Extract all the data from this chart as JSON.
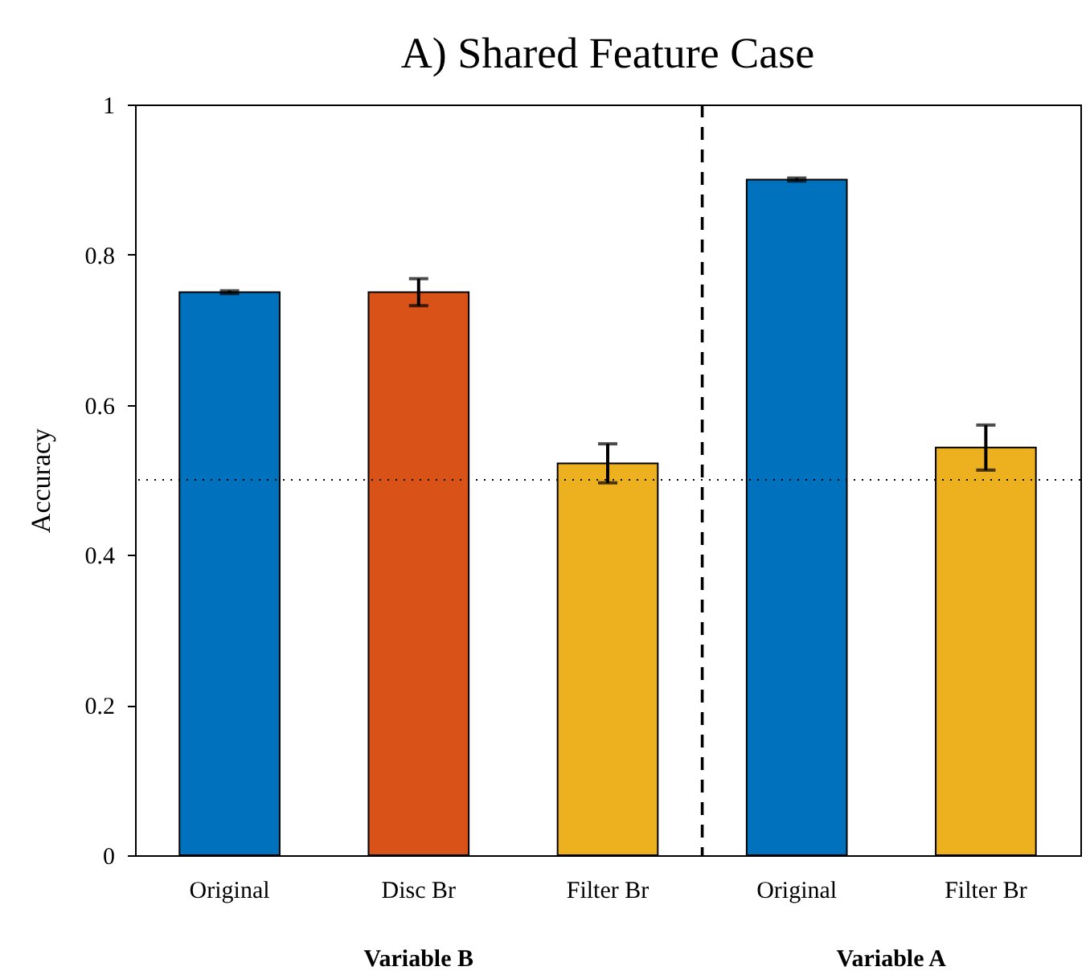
{
  "chart_data": {
    "type": "bar",
    "title": "A) Shared Feature Case",
    "ylabel": "Accuracy",
    "categories": [
      "Original",
      "Disc Br",
      "Filter Br",
      "Original",
      "Filter Br"
    ],
    "values": [
      0.75,
      0.75,
      0.522,
      0.9,
      0.543
    ],
    "colors": [
      "#0072bd",
      "#d95319",
      "#edb120",
      "#0072bd",
      "#edb120"
    ],
    "errors": [
      0.002,
      0.018,
      0.026,
      0.002,
      0.03
    ],
    "ylim": [
      0,
      1
    ],
    "yticks": [
      0,
      0.2,
      0.4,
      0.6,
      0.8,
      1
    ],
    "ref_lines": [
      {
        "axis": "y",
        "value": 0.5,
        "line_style": "dotted",
        "color": "#000000"
      }
    ],
    "annotations": [
      "Variable B",
      "Variable A"
    ]
  }
}
